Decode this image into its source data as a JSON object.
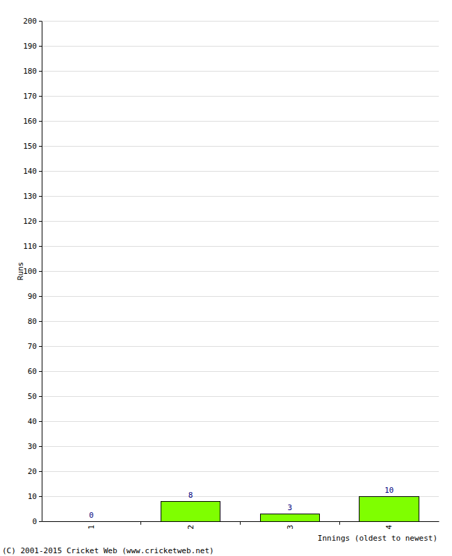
{
  "chart_data": {
    "type": "bar",
    "x_label": "Innings (oldest to newest)",
    "y_label": "Runs",
    "categories": [
      "1",
      "2",
      "3",
      "4"
    ],
    "values": [
      0,
      8,
      3,
      10
    ],
    "color": "#7fff00",
    "ylim": [
      0,
      200
    ],
    "yticks": [
      0,
      10,
      20,
      30,
      40,
      50,
      60,
      70,
      80,
      90,
      100,
      110,
      120,
      130,
      140,
      150,
      160,
      170,
      180,
      190,
      200
    ],
    "grid": true,
    "data_labels": true,
    "annotations": [
      "(C) 2001-2015 Cricket Web (www.cricketweb.net)"
    ]
  }
}
